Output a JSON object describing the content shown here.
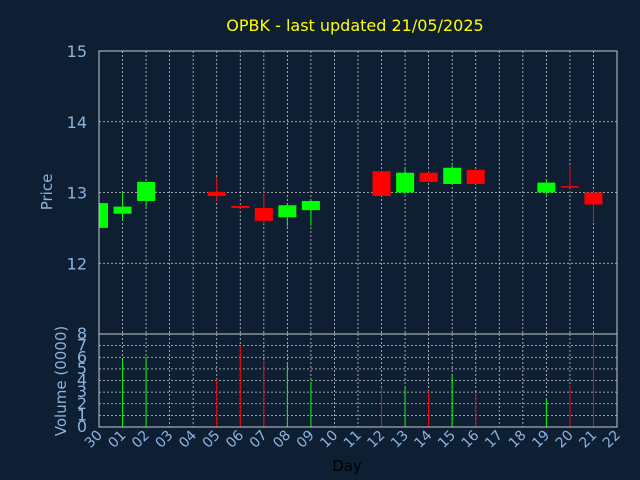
{
  "chart_data": {
    "type": "candlestick",
    "title": "OPBK - last updated 21/05/2025",
    "xlabel": "Day",
    "ylabel": "Price",
    "volume_label": "Volume (0000)",
    "ylim": [
      11,
      15
    ],
    "yticks": [
      12,
      13,
      14,
      15
    ],
    "volume_ylim": [
      0,
      8
    ],
    "volume_yticks": [
      0,
      1,
      2,
      3,
      4,
      5,
      6,
      7,
      8
    ],
    "x_ticks": [
      "30",
      "01",
      "02",
      "03",
      "04",
      "05",
      "06",
      "07",
      "08",
      "09",
      "10",
      "11",
      "12",
      "13",
      "14",
      "15",
      "16",
      "17",
      "18",
      "19",
      "20",
      "21",
      "22"
    ],
    "grid": true,
    "colors": {
      "up": "#00ff00",
      "down": "#ff0000",
      "background": "#0f1f33",
      "title": "#ffff00",
      "axis_text": "#8ab4e0",
      "grid": "#c8c8c8"
    },
    "candles": [
      {
        "day": "30",
        "open": 12.5,
        "high": 12.85,
        "low": 12.48,
        "close": 12.85,
        "volume": 0
      },
      {
        "day": "01",
        "open": 12.7,
        "high": 13.0,
        "low": 12.6,
        "close": 12.8,
        "volume": 5.8
      },
      {
        "day": "02",
        "open": 12.88,
        "high": 13.15,
        "low": 12.8,
        "close": 13.15,
        "volume": 6.0
      },
      {
        "day": "05",
        "open": 13.01,
        "high": 13.22,
        "low": 12.88,
        "close": 12.95,
        "volume": 4.1
      },
      {
        "day": "06",
        "open": 12.81,
        "high": 12.81,
        "low": 12.77,
        "close": 12.78,
        "volume": 7.0
      },
      {
        "day": "07",
        "open": 12.78,
        "high": 13.05,
        "low": 12.56,
        "close": 12.6,
        "volume": 5.7
      },
      {
        "day": "08",
        "open": 12.65,
        "high": 12.85,
        "low": 12.52,
        "close": 12.82,
        "volume": 5.5
      },
      {
        "day": "09",
        "open": 12.75,
        "high": 12.9,
        "low": 12.53,
        "close": 12.88,
        "volume": 3.9
      },
      {
        "day": "12",
        "open": 13.3,
        "high": 13.3,
        "low": 12.95,
        "close": 12.95,
        "volume": 3.4
      },
      {
        "day": "13",
        "open": 13.0,
        "high": 13.35,
        "low": 12.98,
        "close": 13.28,
        "volume": 3.4
      },
      {
        "day": "14",
        "open": 13.28,
        "high": 13.3,
        "low": 13.15,
        "close": 13.15,
        "volume": 3.1
      },
      {
        "day": "15",
        "open": 13.12,
        "high": 13.38,
        "low": 13.12,
        "close": 13.35,
        "volume": 4.4
      },
      {
        "day": "16",
        "open": 13.32,
        "high": 13.32,
        "low": 13.12,
        "close": 13.12,
        "volume": 2.9
      },
      {
        "day": "19",
        "open": 13.0,
        "high": 13.19,
        "low": 12.97,
        "close": 13.14,
        "volume": 2.4
      },
      {
        "day": "20",
        "open": 13.09,
        "high": 13.38,
        "low": 13.06,
        "close": 13.07,
        "volume": 3.6
      },
      {
        "day": "21",
        "open": 13.0,
        "high": 13.04,
        "low": 12.58,
        "close": 12.83,
        "volume": 8.0
      }
    ]
  }
}
